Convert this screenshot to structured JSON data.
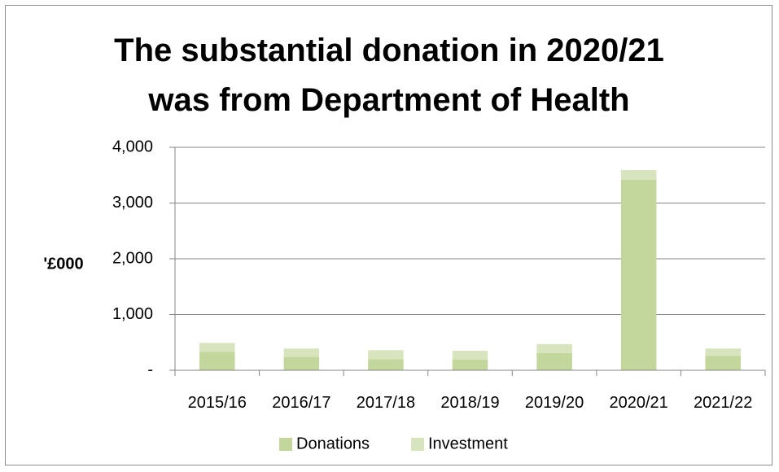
{
  "chart_data": {
    "type": "bar",
    "stacked": true,
    "title_lines": [
      "The substantial donation in 2020/21",
      "was from Department of Health"
    ],
    "ylabel": "'£000",
    "xlabel": "",
    "categories": [
      "2015/16",
      "2016/17",
      "2017/18",
      "2018/19",
      "2019/20",
      "2020/21",
      "2021/22"
    ],
    "series": [
      {
        "name": "Donations",
        "color": "#c3d69b",
        "values": [
          330,
          240,
          200,
          190,
          310,
          3420,
          260
        ]
      },
      {
        "name": "Investment",
        "color": "#d7e4bd",
        "values": [
          160,
          150,
          160,
          160,
          160,
          170,
          130
        ]
      }
    ],
    "ylim": [
      0,
      4000
    ],
    "yticks": [
      0,
      1000,
      2000,
      3000,
      4000
    ],
    "ytick_labels": [
      "-",
      "1,000",
      "2,000",
      "3,000",
      "4,000"
    ],
    "grid": "horizontal",
    "axis_color": "#868686",
    "legend_position": "bottom"
  }
}
